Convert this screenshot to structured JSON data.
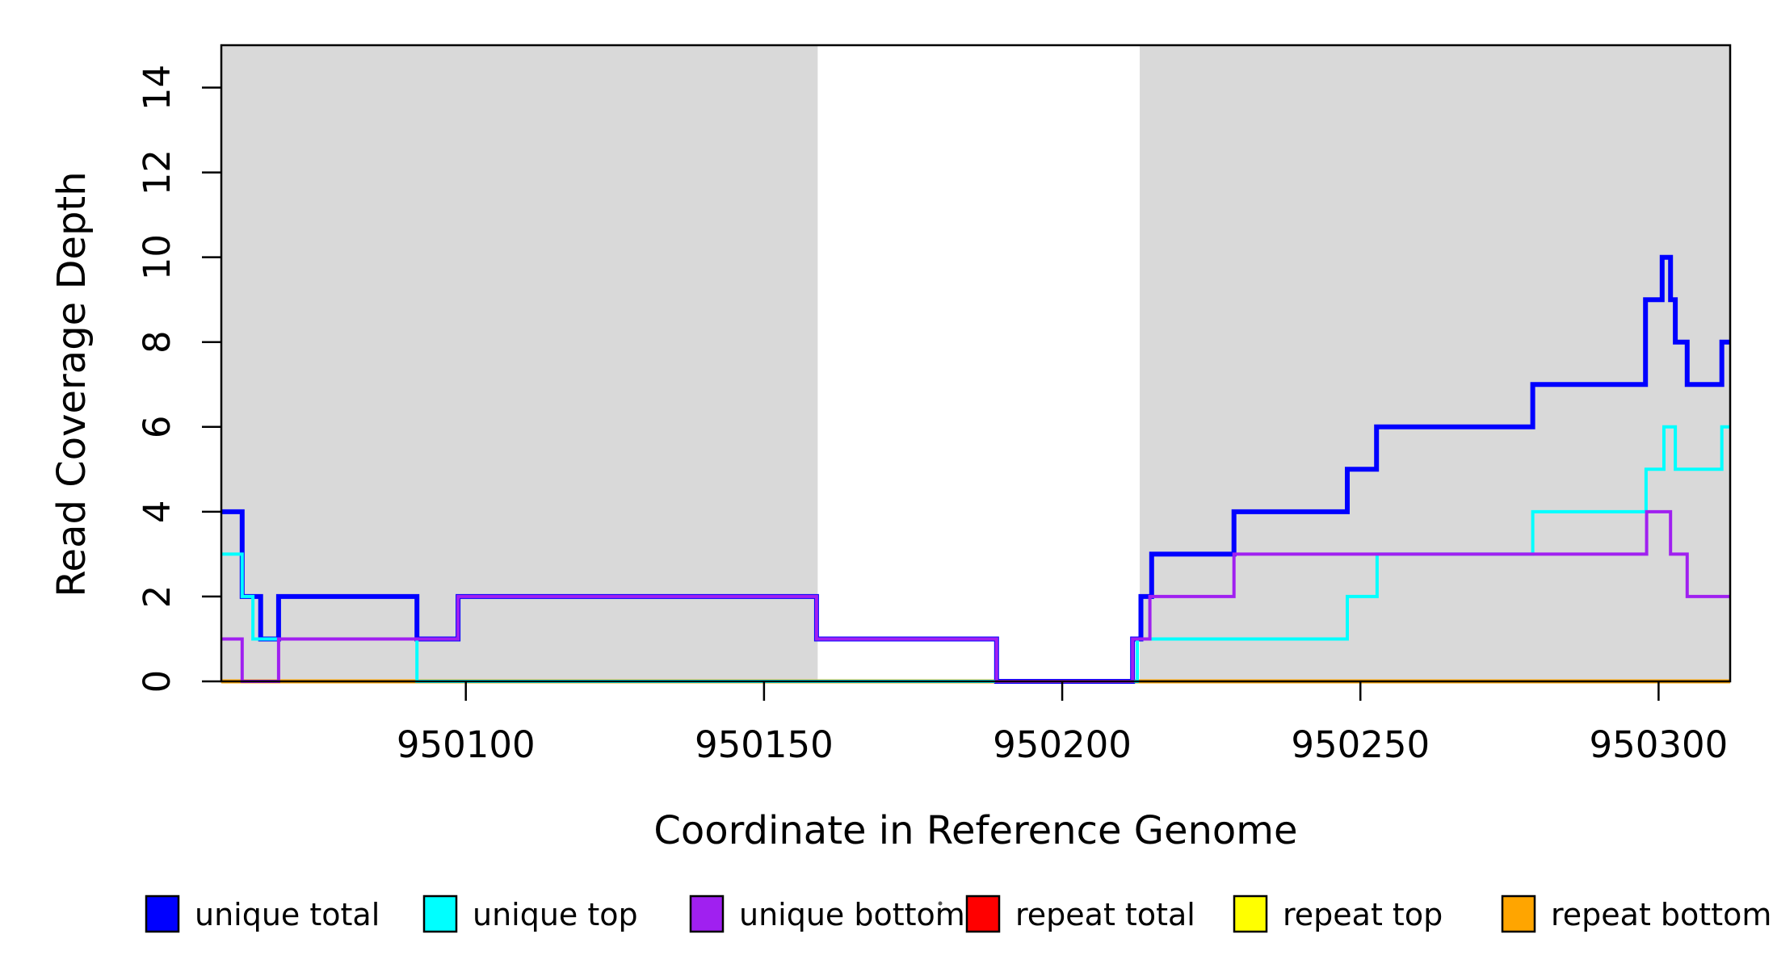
{
  "chart_data": {
    "type": "line",
    "step": true,
    "title": "",
    "xlabel": "Coordinate in Reference Genome",
    "ylabel": "Read Coverage Depth",
    "xlim": [
      950059,
      950312
    ],
    "ylim": [
      0,
      15
    ],
    "x_ticks": [
      950100,
      950150,
      950200,
      950250,
      950300
    ],
    "y_ticks": [
      0,
      2,
      4,
      6,
      8,
      10,
      12,
      14
    ],
    "grid": false,
    "shaded_regions": [
      {
        "name": "left-unique-region",
        "from": 950059,
        "to": 950159,
        "color": "#D9D9D9"
      },
      {
        "name": "right-unique-region",
        "from": 950213,
        "to": 950312,
        "color": "#D9D9D9"
      }
    ],
    "series": [
      {
        "name": "repeat total",
        "color": "#FF0000",
        "line_width": 3.5,
        "steps": [
          [
            950059,
            0
          ]
        ]
      },
      {
        "name": "repeat top",
        "color": "#FFFF00",
        "line_width": 3.5,
        "steps": [
          [
            950059,
            0
          ]
        ]
      },
      {
        "name": "repeat bottom",
        "color": "#FFA500",
        "line_width": 5,
        "steps": [
          [
            950059,
            0
          ]
        ]
      },
      {
        "name": "unique total",
        "color": "#0000FF",
        "line_width": 6,
        "steps": [
          [
            950059,
            4
          ],
          [
            950062.5,
            2
          ],
          [
            950065.6,
            1
          ],
          [
            950068.6,
            2
          ],
          [
            950091.8,
            1
          ],
          [
            950098.7,
            2
          ],
          [
            950158.8,
            1
          ],
          [
            950189,
            0
          ],
          [
            950211.8,
            1
          ],
          [
            950213.2,
            2
          ],
          [
            950215,
            3
          ],
          [
            950228.8,
            4
          ],
          [
            950247.8,
            5
          ],
          [
            950252.7,
            6
          ],
          [
            950278.9,
            7
          ],
          [
            950297.8,
            9
          ],
          [
            950300.6,
            10
          ],
          [
            950302,
            9
          ],
          [
            950302.8,
            8
          ],
          [
            950304.8,
            7
          ],
          [
            950310.6,
            8
          ]
        ]
      },
      {
        "name": "unique top",
        "color": "#00FFFF",
        "line_width": 4,
        "steps": [
          [
            950059,
            3
          ],
          [
            950062.5,
            2
          ],
          [
            950064.3,
            1
          ],
          [
            950091.8,
            0
          ],
          [
            950212.6,
            1
          ],
          [
            950247.8,
            2
          ],
          [
            950252.8,
            3
          ],
          [
            950278.9,
            4
          ],
          [
            950297.9,
            5
          ],
          [
            950300.9,
            6
          ],
          [
            950302.8,
            5
          ],
          [
            950310.6,
            6
          ]
        ]
      },
      {
        "name": "unique bottom",
        "color": "#A020F0",
        "line_width": 4,
        "steps": [
          [
            950059,
            1
          ],
          [
            950062.5,
            0
          ],
          [
            950068.6,
            1
          ],
          [
            950098.7,
            2
          ],
          [
            950158.8,
            1
          ],
          [
            950189,
            0
          ],
          [
            950211.8,
            1
          ],
          [
            950214.7,
            2
          ],
          [
            950228.8,
            3
          ],
          [
            950298,
            4
          ],
          [
            950302,
            3
          ],
          [
            950304.8,
            2
          ]
        ]
      }
    ]
  },
  "legend": {
    "swatch_border_color": "#000000",
    "items": [
      {
        "label": "unique total",
        "color": "#0000FF"
      },
      {
        "label": "unique top",
        "color": "#00FFFF"
      },
      {
        "label": "unique bottom",
        "color": "#A020F0"
      },
      {
        "label": "repeat total",
        "color": "#FF0000"
      },
      {
        "label": "repeat top",
        "color": "#FFFF00"
      },
      {
        "label": "repeat bottom",
        "color": "#FFA500"
      }
    ]
  }
}
